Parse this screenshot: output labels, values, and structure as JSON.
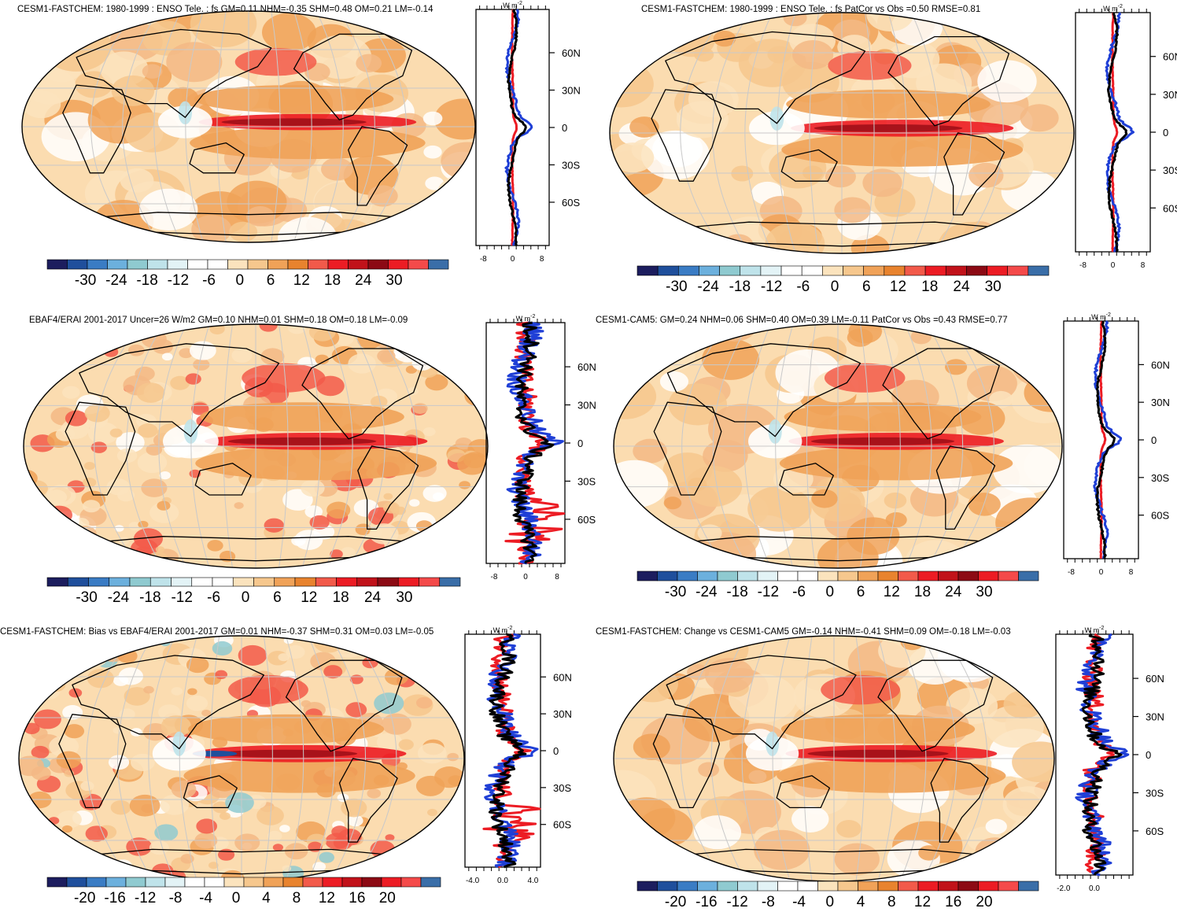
{
  "chart_data": [
    {
      "type": "heatmap",
      "title": "CESM1-FASTCHEM: 1980-1999 : ENSO Tele. : fs GM=0.11 NHM=-0.35 SHM=0.48 OM=0.21 LM=-0.14",
      "colorbar_ticks": [
        "-30",
        "-24",
        "-18",
        "-12",
        "-6",
        "0",
        "6",
        "12",
        "18",
        "24",
        "30"
      ],
      "profile_unit_base": "W m",
      "profile_unit_exp": "-2",
      "profile_lat_labels": [
        "60N",
        "30N",
        "0",
        "30S",
        "60S"
      ],
      "profile_x_ticks": [
        "-8",
        "0",
        "8"
      ]
    },
    {
      "type": "heatmap",
      "title": "CESM1-FASTCHEM: 1980-1999 : ENSO Tele. : fs PatCor vs Obs =0.50 RMSE=0.81",
      "colorbar_ticks": [
        "-30",
        "-24",
        "-18",
        "-12",
        "-6",
        "0",
        "6",
        "12",
        "18",
        "24",
        "30"
      ],
      "profile_unit_base": "W m",
      "profile_unit_exp": "-2",
      "profile_lat_labels": [
        "60N",
        "30N",
        "0",
        "30S",
        "60S"
      ],
      "profile_x_ticks": [
        "-8",
        "0",
        "8"
      ]
    },
    {
      "type": "heatmap",
      "title": "EBAF4/ERAI 2001-2017 Uncer=26 W/m2 GM=0.10 NHM=0.01 SHM=0.18 OM=0.18 LM=-0.09",
      "colorbar_ticks": [
        "-30",
        "-24",
        "-18",
        "-12",
        "-6",
        "0",
        "6",
        "12",
        "18",
        "24",
        "30"
      ],
      "profile_unit_base": "W m",
      "profile_unit_exp": "-2",
      "profile_lat_labels": [
        "60N",
        "30N",
        "0",
        "30S",
        "60S"
      ],
      "profile_x_ticks": [
        "-8",
        "0",
        "8"
      ]
    },
    {
      "type": "heatmap",
      "title": "CESM1-CAM5: GM=0.24 NHM=0.06 SHM=0.40 OM=0.39 LM=-0.11 PatCor vs Obs =0.43 RMSE=0.77",
      "colorbar_ticks": [
        "-30",
        "-24",
        "-18",
        "-12",
        "-6",
        "0",
        "6",
        "12",
        "18",
        "24",
        "30"
      ],
      "profile_unit_base": "W m",
      "profile_unit_exp": "-2",
      "profile_lat_labels": [
        "60N",
        "30N",
        "0",
        "30S",
        "60S"
      ],
      "profile_x_ticks": [
        "-8",
        "0",
        "8"
      ]
    },
    {
      "type": "heatmap",
      "title": "CESM1-FASTCHEM: Bias vs EBAF4/ERAI 2001-2017 GM=0.01 NHM=-0.37 SHM=0.31 OM=0.03 LM=-0.05",
      "colorbar_ticks": [
        "-20",
        "-16",
        "-12",
        "-8",
        "-4",
        "0",
        "4",
        "8",
        "12",
        "16",
        "20"
      ],
      "profile_unit_base": "W m",
      "profile_unit_exp": "-2",
      "profile_lat_labels": [
        "60N",
        "30N",
        "0",
        "30S",
        "60S"
      ],
      "profile_x_ticks": [
        "-4.0",
        "0.0",
        "4.0"
      ]
    },
    {
      "type": "heatmap",
      "title": "CESM1-FASTCHEM: Change vs CESM1-CAM5 GM=-0.14 NHM=-0.41 SHM=0.09 OM=-0.18 LM=-0.03",
      "colorbar_ticks": [
        "-20",
        "-16",
        "-12",
        "-8",
        "-4",
        "0",
        "4",
        "8",
        "12",
        "16",
        "20"
      ],
      "profile_unit_base": "W m",
      "profile_unit_exp": "-2",
      "profile_lat_labels": [
        "60N",
        "30N",
        "0",
        "30S",
        "60S"
      ],
      "profile_x_ticks": [
        "-2.0",
        "0.0"
      ]
    }
  ],
  "colorbar_colors": [
    "#1c1d5e",
    "#1f4f9c",
    "#3a7cc4",
    "#6cb0dd",
    "#8fcad0",
    "#bfe3ea",
    "#e3f3f6",
    "#ffffff",
    "#ffffff",
    "#fbe3bd",
    "#f6c78d",
    "#f0a258",
    "#e8832e",
    "#f25a4a",
    "#ec1c24",
    "#c1121a",
    "#8c0a14",
    "#ec1c24",
    "#f44a4a",
    "#3a6ea8"
  ]
}
